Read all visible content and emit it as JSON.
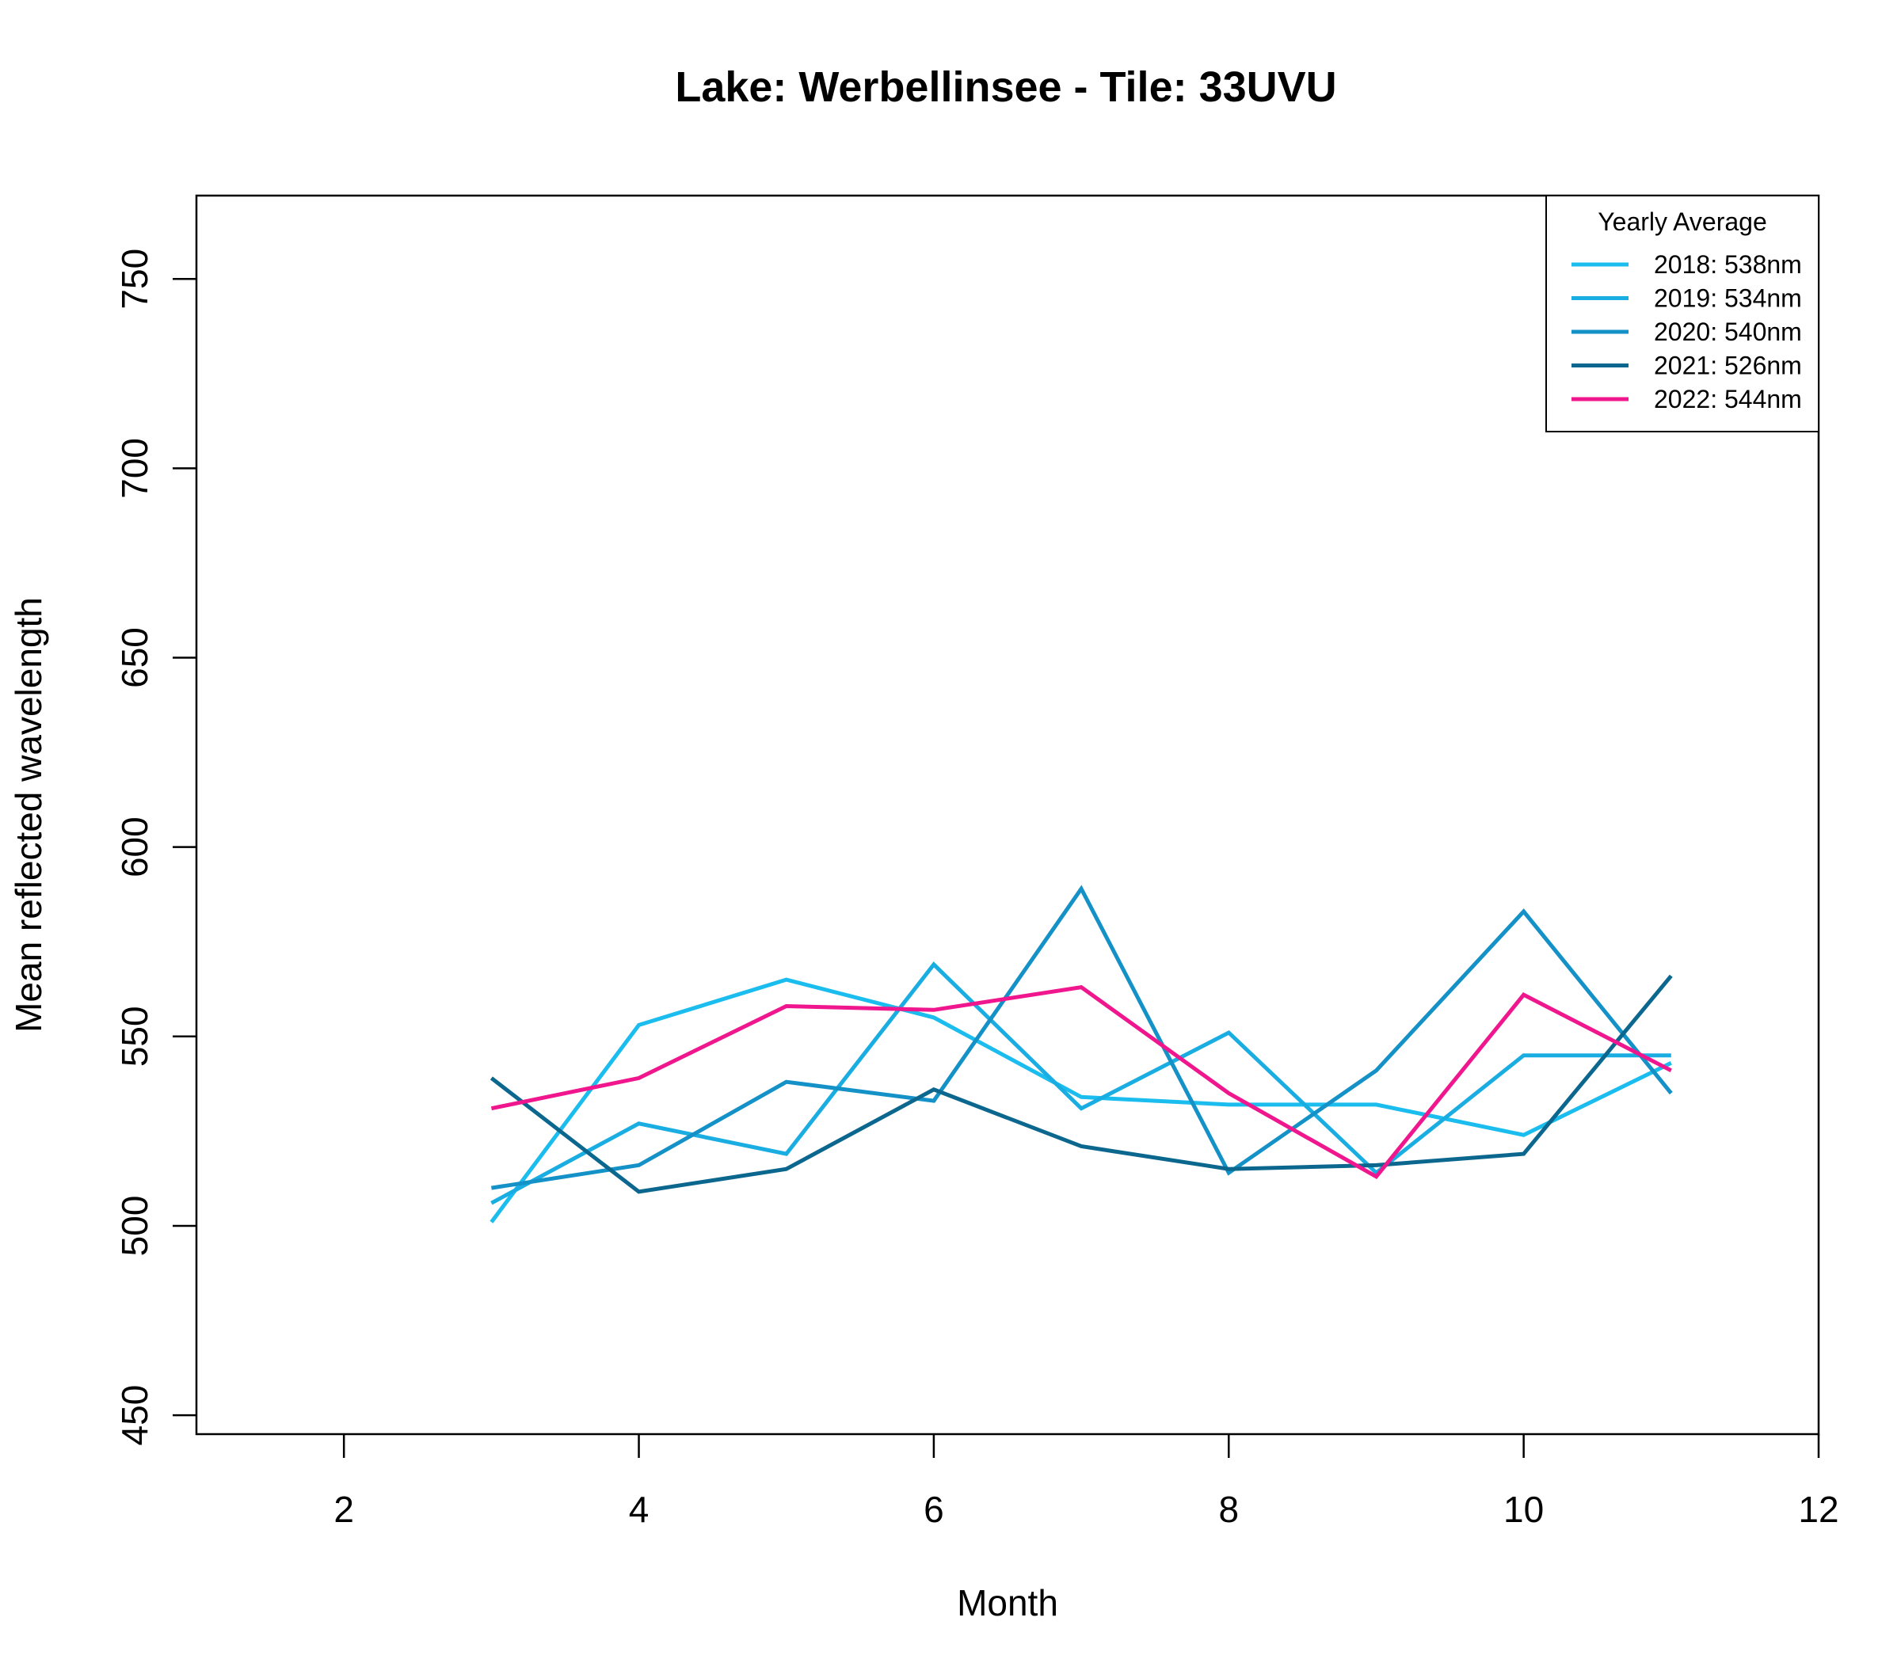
{
  "chart_data": {
    "type": "line",
    "title": "Lake: Werbellinsee  - Tile: 33UVU",
    "xlabel": "Month",
    "ylabel": "Mean reflected wavelength",
    "xlim": [
      1,
      12
    ],
    "ylim": [
      445,
      772
    ],
    "x_ticks": [
      2,
      4,
      6,
      8,
      10,
      12
    ],
    "y_ticks": [
      450,
      500,
      550,
      600,
      650,
      700,
      750
    ],
    "grid": false,
    "legend": {
      "title": "Yearly Average",
      "position": "top-right"
    },
    "x": [
      3,
      4,
      5,
      6,
      7,
      8,
      9,
      10,
      11
    ],
    "series": [
      {
        "name": "2018: 538nm",
        "color": "#1ABDEE",
        "values": [
          501,
          553,
          565,
          555,
          534,
          532,
          532,
          524,
          543
        ]
      },
      {
        "name": "2019: 534nm",
        "color": "#19ADE2",
        "values": [
          506,
          527,
          519,
          569,
          531,
          551,
          514,
          545,
          545
        ]
      },
      {
        "name": "2020: 540nm",
        "color": "#1491C6",
        "values": [
          510,
          516,
          538,
          533,
          589,
          514,
          541,
          583,
          535
        ]
      },
      {
        "name": "2021: 526nm",
        "color": "#0C678F",
        "values": [
          539,
          509,
          515,
          536,
          521,
          515,
          516,
          519,
          566
        ]
      },
      {
        "name": "2022: 544nm",
        "color": "#F0168E",
        "values": [
          531,
          539,
          558,
          557,
          563,
          535,
          513,
          561,
          541
        ]
      }
    ]
  }
}
